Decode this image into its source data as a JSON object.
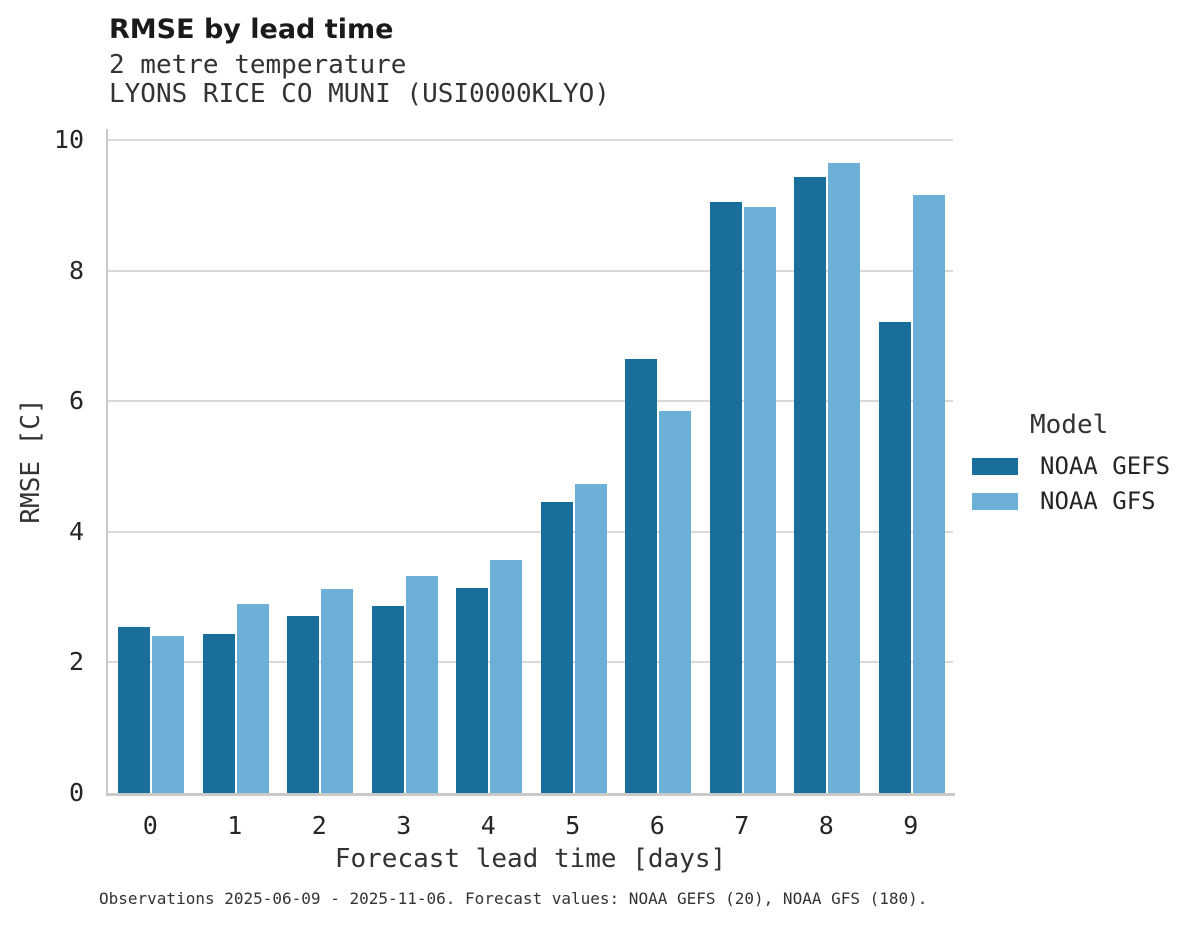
{
  "header": {
    "title": "RMSE by lead time",
    "subtitle1": "2 metre temperature",
    "subtitle2": "LYONS RICE CO MUNI (USI0000KLYO)"
  },
  "chart_data": {
    "type": "bar",
    "title": "RMSE by lead time",
    "subtitle": "2 metre temperature",
    "station": "LYONS RICE CO MUNI (USI0000KLYO)",
    "categories": [
      "0",
      "1",
      "2",
      "3",
      "4",
      "5",
      "6",
      "7",
      "8",
      "9"
    ],
    "series": [
      {
        "name": "NOAA GEFS",
        "color": "#1a6e9c",
        "values": [
          2.55,
          2.43,
          2.71,
          2.86,
          3.14,
          4.46,
          6.64,
          9.05,
          9.44,
          7.21
        ]
      },
      {
        "name": "NOAA GFS",
        "color": "#6cb0d8",
        "values": [
          2.4,
          2.9,
          3.13,
          3.32,
          3.57,
          4.73,
          5.85,
          8.97,
          9.65,
          9.16
        ]
      }
    ],
    "xlabel": "Forecast lead time [days]",
    "ylabel": "RMSE [C]",
    "ylim": [
      0,
      10.17
    ],
    "yticks": [
      0,
      2,
      4,
      6,
      8,
      10
    ],
    "grid": true,
    "legend_title": "Model",
    "legend_position": "right"
  },
  "caption": "Observations 2025-06-09 - 2025-11-06. Forecast values: NOAA GEFS (20), NOAA GFS (180)."
}
